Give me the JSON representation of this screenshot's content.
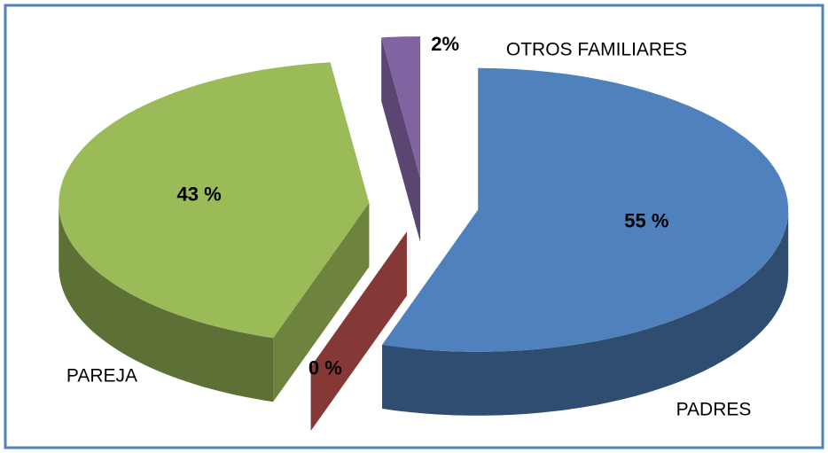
{
  "chart_data": {
    "type": "pie3d",
    "categories": [
      "PADRES",
      null,
      "PAREJA",
      "OTROS FAMILIARES"
    ],
    "values": [
      55,
      0,
      43,
      2
    ],
    "value_labels": [
      "55 %",
      "0 %",
      "43 %",
      "2%"
    ],
    "colors": [
      "#4f81bd",
      "#c0504d",
      "#9bbb59",
      "#8064a2"
    ]
  }
}
